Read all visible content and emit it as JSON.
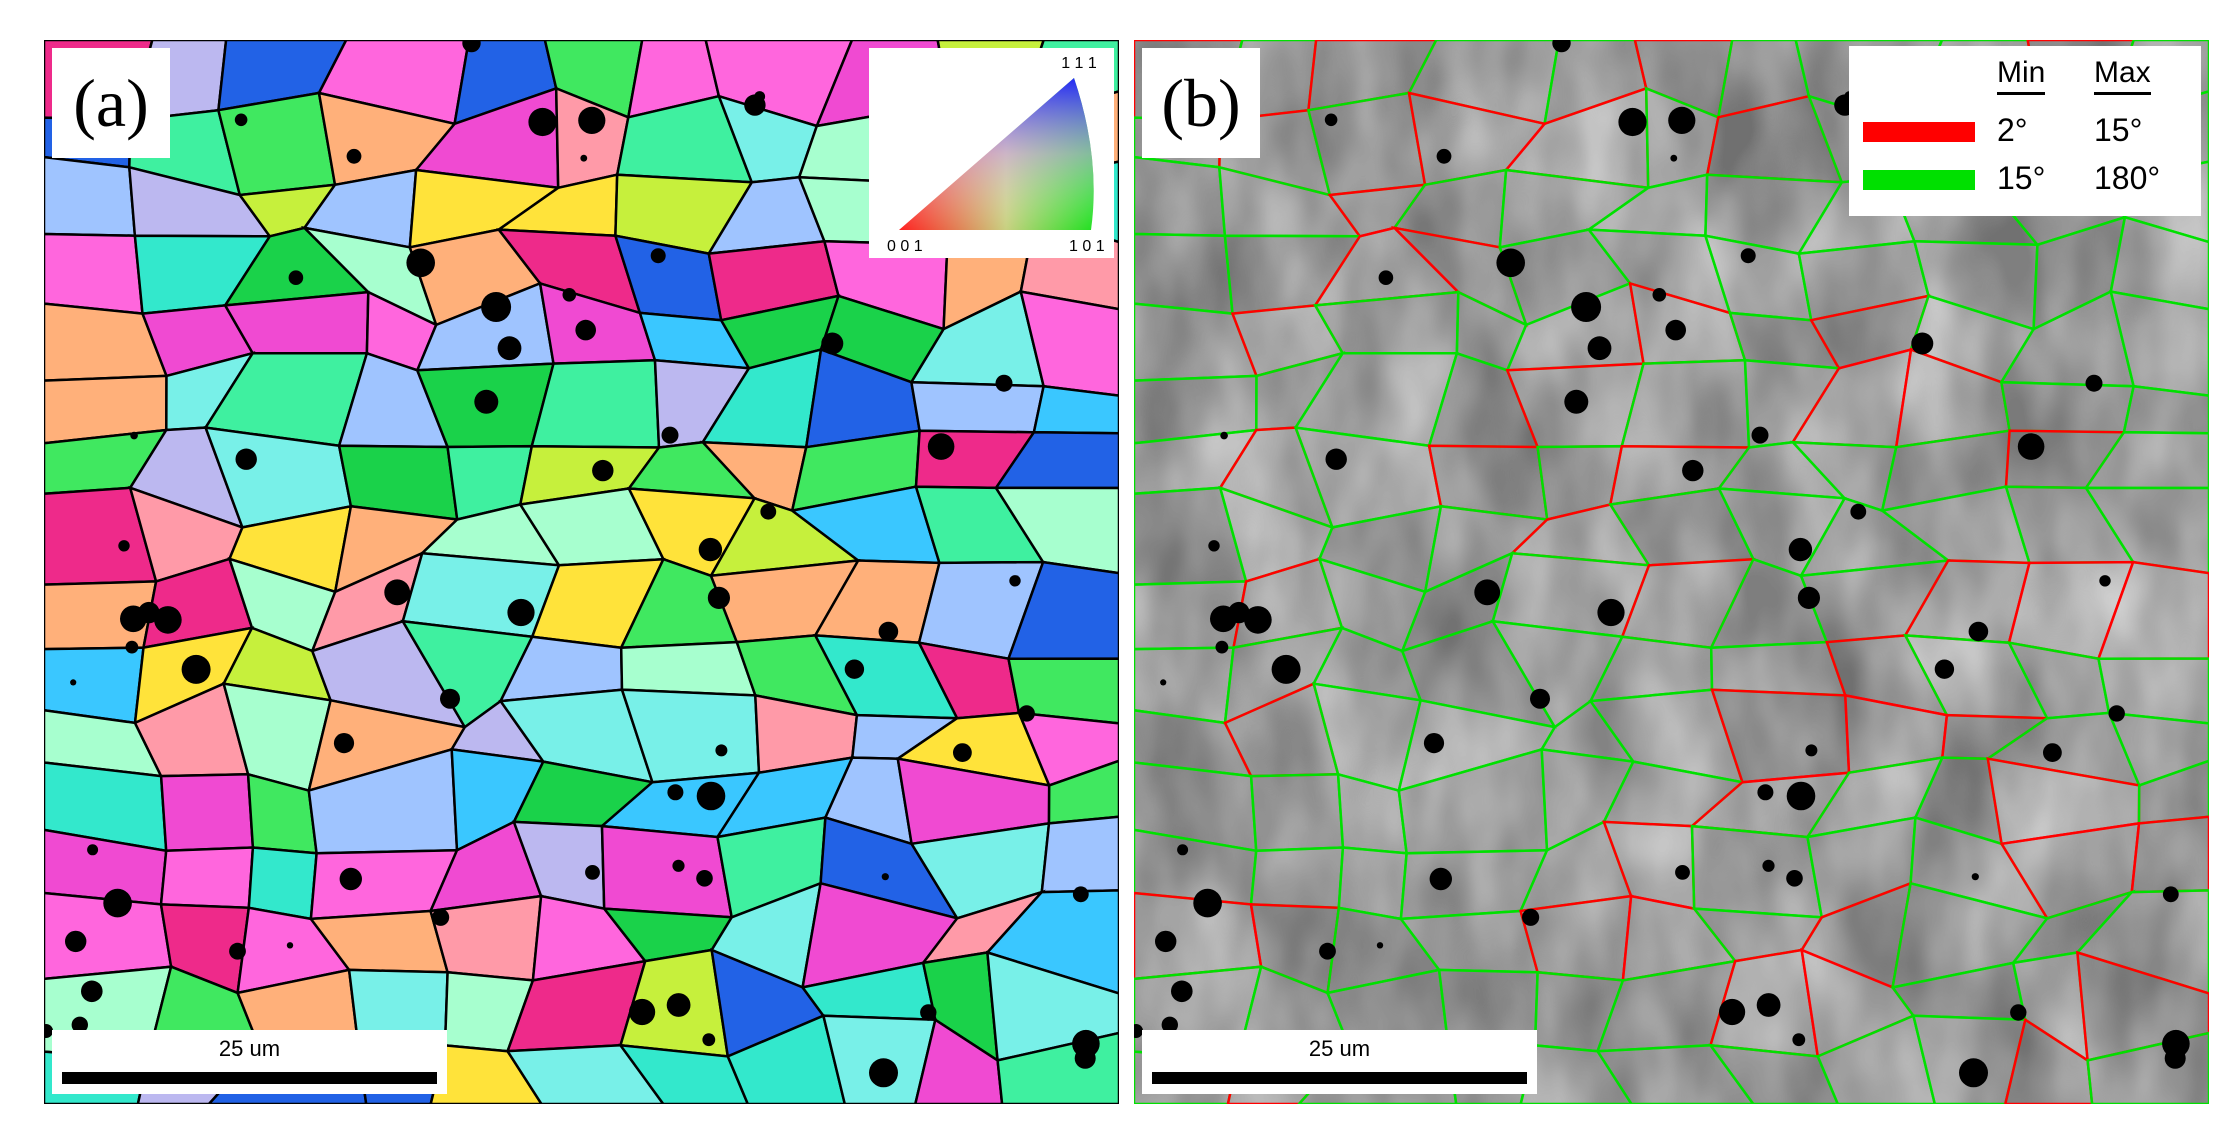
{
  "panels": {
    "a": {
      "label": "(a)",
      "scale_bar": "25 um"
    },
    "b": {
      "label": "(b)",
      "scale_bar": "25 um"
    }
  },
  "ipf_key": {
    "top": "1 1 1",
    "left": "0 0 1",
    "right": "1 0 1"
  },
  "boundary_legend": {
    "col_min": "Min",
    "col_max": "Max",
    "rows": [
      {
        "min": "2°",
        "max": "15°",
        "color": "#ff0000"
      },
      {
        "min": "15°",
        "max": "180°",
        "color": "#00e000"
      }
    ]
  },
  "colors": {
    "grain_palette": [
      "#f04ad2",
      "#ff66dd",
      "#33e8cc",
      "#3ff0a0",
      "#40e860",
      "#1ad24a",
      "#c6f03c",
      "#ffb07a",
      "#ff9aa8",
      "#9fc4ff",
      "#3ac7ff",
      "#2262e6",
      "#ee2a8a",
      "#ffe33a",
      "#bcb8f0",
      "#78f0e8",
      "#a7ffcf"
    ],
    "boundary_low": "#ff0000",
    "boundary_high": "#00e000"
  }
}
